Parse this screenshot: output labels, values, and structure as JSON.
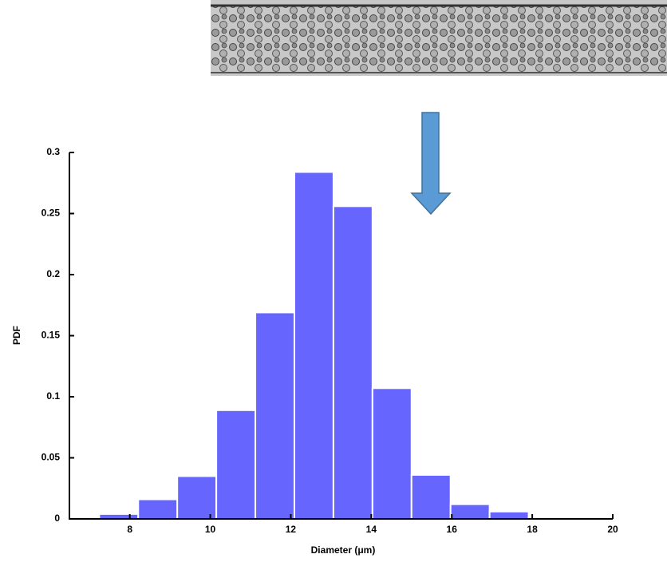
{
  "chart_data": {
    "type": "histogram",
    "bins": [
      7.24,
      8.21,
      9.18,
      10.15,
      11.12,
      12.09,
      13.06,
      14.03,
      15.0,
      15.97,
      16.94,
      17.91,
      18.88
    ],
    "values": [
      0.004,
      0.016,
      0.035,
      0.089,
      0.169,
      0.284,
      0.256,
      0.107,
      0.036,
      0.012,
      0.006,
      0.001
    ],
    "color": "#6666ff",
    "xlabel": "Diameter (μm)",
    "ylabel": "PDF",
    "xlim": [
      6.5,
      20
    ],
    "xticks": [
      8,
      10,
      12,
      14,
      16,
      18,
      20
    ],
    "ylim": [
      0,
      0.3
    ],
    "yticks": [
      0,
      0.05,
      0.1,
      0.15,
      0.2,
      0.25,
      0.3
    ]
  }
}
